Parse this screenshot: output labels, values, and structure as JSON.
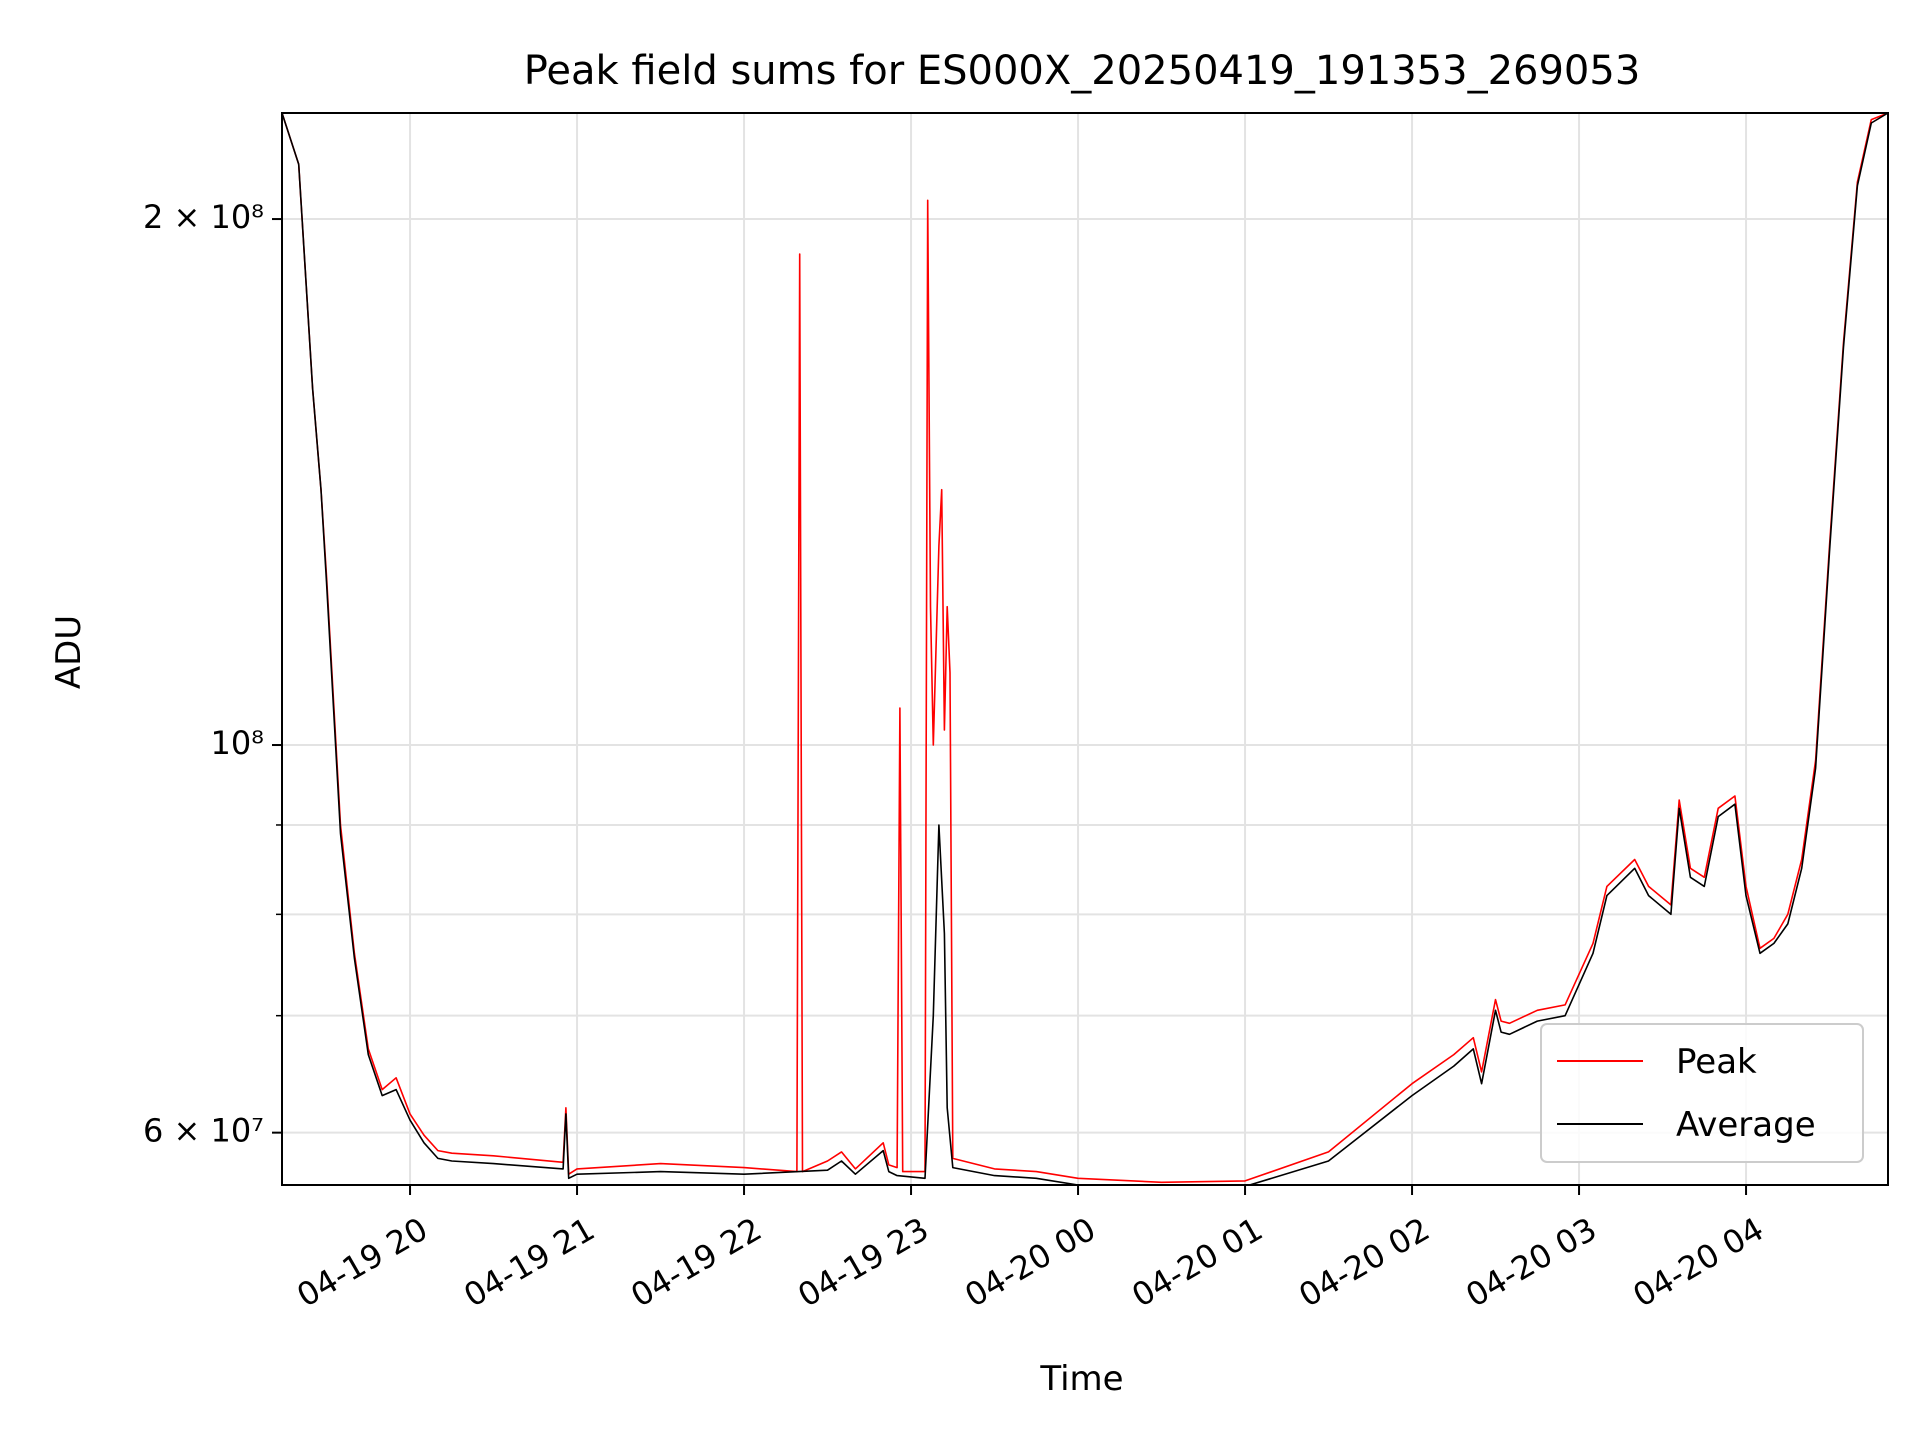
{
  "chart_data": {
    "type": "line",
    "title": "Peak field sums for ES000X_20250419_191353_269053",
    "xlabel": "Time",
    "ylabel": "ADU",
    "xlim": [
      "2025-04-19 19:14",
      "2025-04-20 04:51"
    ],
    "ylim": [
      56000000,
      230000000
    ],
    "yscale": "log",
    "grid": true,
    "legend": "lower-right",
    "x_ticks": [
      {
        "value": "2025-04-19 20:00",
        "label": "04-19 20"
      },
      {
        "value": "2025-04-19 21:00",
        "label": "04-19 21"
      },
      {
        "value": "2025-04-19 22:00",
        "label": "04-19 22"
      },
      {
        "value": "2025-04-19 23:00",
        "label": "04-19 23"
      },
      {
        "value": "2025-04-20 00:00",
        "label": "04-20 00"
      },
      {
        "value": "2025-04-20 01:00",
        "label": "04-20 01"
      },
      {
        "value": "2025-04-20 02:00",
        "label": "04-20 02"
      },
      {
        "value": "2025-04-20 03:00",
        "label": "04-20 03"
      },
      {
        "value": "2025-04-20 04:00",
        "label": "04-20 04"
      }
    ],
    "y_ticks": [
      {
        "value": 60000000,
        "label": "6 × 10⁷"
      },
      {
        "value": 100000000,
        "label": "10⁸"
      },
      {
        "value": 200000000,
        "label": "2 × 10⁸"
      }
    ],
    "y_minor_ticks": [
      70000000,
      80000000,
      90000000
    ],
    "series": [
      {
        "name": "Peak",
        "color": "#ff0000",
        "x": [
          "2025-04-19 19:14",
          "2025-04-19 19:20",
          "2025-04-19 19:25",
          "2025-04-19 19:28",
          "2025-04-19 19:30",
          "2025-04-19 19:35",
          "2025-04-19 19:40",
          "2025-04-19 19:45",
          "2025-04-19 19:50",
          "2025-04-19 19:55",
          "2025-04-19 20:00",
          "2025-04-19 20:05",
          "2025-04-19 20:10",
          "2025-04-19 20:15",
          "2025-04-19 20:30",
          "2025-04-19 20:55",
          "2025-04-19 20:56",
          "2025-04-19 20:57",
          "2025-04-19 21:00",
          "2025-04-19 21:30",
          "2025-04-19 22:00",
          "2025-04-19 22:19",
          "2025-04-19 22:20",
          "2025-04-19 22:21",
          "2025-04-19 22:30",
          "2025-04-19 22:35",
          "2025-04-19 22:40",
          "2025-04-19 22:50",
          "2025-04-19 22:52",
          "2025-04-19 22:55",
          "2025-04-19 22:56",
          "2025-04-19 22:57",
          "2025-04-19 23:05",
          "2025-04-19 23:06",
          "2025-04-19 23:07",
          "2025-04-19 23:08",
          "2025-04-19 23:10",
          "2025-04-19 23:11",
          "2025-04-19 23:12",
          "2025-04-19 23:13",
          "2025-04-19 23:14",
          "2025-04-19 23:15",
          "2025-04-19 23:30",
          "2025-04-19 23:45",
          "2025-04-20 00:00",
          "2025-04-20 00:30",
          "2025-04-20 01:00",
          "2025-04-20 01:30",
          "2025-04-20 02:00",
          "2025-04-20 02:15",
          "2025-04-20 02:22",
          "2025-04-20 02:25",
          "2025-04-20 02:30",
          "2025-04-20 02:32",
          "2025-04-20 02:35",
          "2025-04-20 02:45",
          "2025-04-20 02:55",
          "2025-04-20 03:05",
          "2025-04-20 03:10",
          "2025-04-20 03:20",
          "2025-04-20 03:25",
          "2025-04-20 03:33",
          "2025-04-20 03:36",
          "2025-04-20 03:40",
          "2025-04-20 03:45",
          "2025-04-20 03:50",
          "2025-04-20 03:56",
          "2025-04-20 04:00",
          "2025-04-20 04:05",
          "2025-04-20 04:10",
          "2025-04-20 04:15",
          "2025-04-20 04:20",
          "2025-04-20 04:25",
          "2025-04-20 04:30",
          "2025-04-20 04:35",
          "2025-04-20 04:40",
          "2025-04-20 04:45",
          "2025-04-20 04:51"
        ],
        "values": [
          230000000,
          215000000,
          160000000,
          140000000,
          125000000,
          90000000,
          76000000,
          67000000,
          63500000,
          64500000,
          61500000,
          59800000,
          58600000,
          58400000,
          58200000,
          57700000,
          62000000,
          56800000,
          57200000,
          57600000,
          57300000,
          57000000,
          191000000,
          57000000,
          57800000,
          58500000,
          57200000,
          59200000,
          57500000,
          57300000,
          105000000,
          57000000,
          57000000,
          205000000,
          120000000,
          100000000,
          130000000,
          140000000,
          102000000,
          120000000,
          110000000,
          58000000,
          57200000,
          57000000,
          56500000,
          56200000,
          56300000,
          58500000,
          64000000,
          66500000,
          68000000,
          65000000,
          71500000,
          69500000,
          69300000,
          70500000,
          71000000,
          77000000,
          83000000,
          86000000,
          83000000,
          81000000,
          93000000,
          85000000,
          84000000,
          92000000,
          93500000,
          83000000,
          76500000,
          77500000,
          80000000,
          86000000,
          98000000,
          130000000,
          170000000,
          210000000,
          228000000,
          230000000
        ]
      },
      {
        "name": "Average",
        "color": "#000000",
        "x": [
          "2025-04-19 19:14",
          "2025-04-19 19:20",
          "2025-04-19 19:25",
          "2025-04-19 19:28",
          "2025-04-19 19:30",
          "2025-04-19 19:35",
          "2025-04-19 19:40",
          "2025-04-19 19:45",
          "2025-04-19 19:50",
          "2025-04-19 19:55",
          "2025-04-19 20:00",
          "2025-04-19 20:05",
          "2025-04-19 20:10",
          "2025-04-19 20:15",
          "2025-04-19 20:30",
          "2025-04-19 20:55",
          "2025-04-19 20:56",
          "2025-04-19 20:57",
          "2025-04-19 21:00",
          "2025-04-19 21:30",
          "2025-04-19 22:00",
          "2025-04-19 22:30",
          "2025-04-19 22:35",
          "2025-04-19 22:40",
          "2025-04-19 22:50",
          "2025-04-19 22:52",
          "2025-04-19 22:55",
          "2025-04-19 23:05",
          "2025-04-19 23:08",
          "2025-04-19 23:10",
          "2025-04-19 23:12",
          "2025-04-19 23:13",
          "2025-04-19 23:15",
          "2025-04-19 23:30",
          "2025-04-19 23:45",
          "2025-04-20 00:00",
          "2025-04-20 00:30",
          "2025-04-20 01:00",
          "2025-04-20 01:30",
          "2025-04-20 02:00",
          "2025-04-20 02:15",
          "2025-04-20 02:22",
          "2025-04-20 02:25",
          "2025-04-20 02:30",
          "2025-04-20 02:32",
          "2025-04-20 02:35",
          "2025-04-20 02:45",
          "2025-04-20 02:55",
          "2025-04-20 03:05",
          "2025-04-20 03:10",
          "2025-04-20 03:20",
          "2025-04-20 03:25",
          "2025-04-20 03:33",
          "2025-04-20 03:36",
          "2025-04-20 03:40",
          "2025-04-20 03:45",
          "2025-04-20 03:50",
          "2025-04-20 03:56",
          "2025-04-20 04:00",
          "2025-04-20 04:05",
          "2025-04-20 04:10",
          "2025-04-20 04:15",
          "2025-04-20 04:20",
          "2025-04-20 04:25",
          "2025-04-20 04:30",
          "2025-04-20 04:35",
          "2025-04-20 04:40",
          "2025-04-20 04:45",
          "2025-04-20 04:51"
        ],
        "values": [
          230000000,
          215000000,
          160000000,
          140000000,
          124000000,
          89000000,
          75500000,
          66500000,
          63000000,
          63500000,
          61000000,
          59200000,
          58000000,
          57800000,
          57600000,
          57200000,
          61500000,
          56500000,
          56800000,
          57000000,
          56800000,
          57100000,
          57800000,
          56800000,
          58600000,
          57000000,
          56700000,
          56500000,
          70000000,
          90000000,
          78000000,
          62000000,
          57300000,
          56700000,
          56500000,
          56000000,
          55800000,
          55900000,
          57800000,
          63000000,
          65500000,
          67000000,
          64000000,
          70500000,
          68500000,
          68300000,
          69500000,
          70000000,
          76000000,
          82000000,
          85000000,
          82000000,
          80000000,
          92000000,
          84000000,
          83000000,
          91000000,
          92500000,
          82000000,
          76000000,
          77000000,
          79000000,
          85000000,
          97000000,
          129000000,
          169000000,
          209000000,
          227000000,
          230000000
        ]
      }
    ]
  }
}
